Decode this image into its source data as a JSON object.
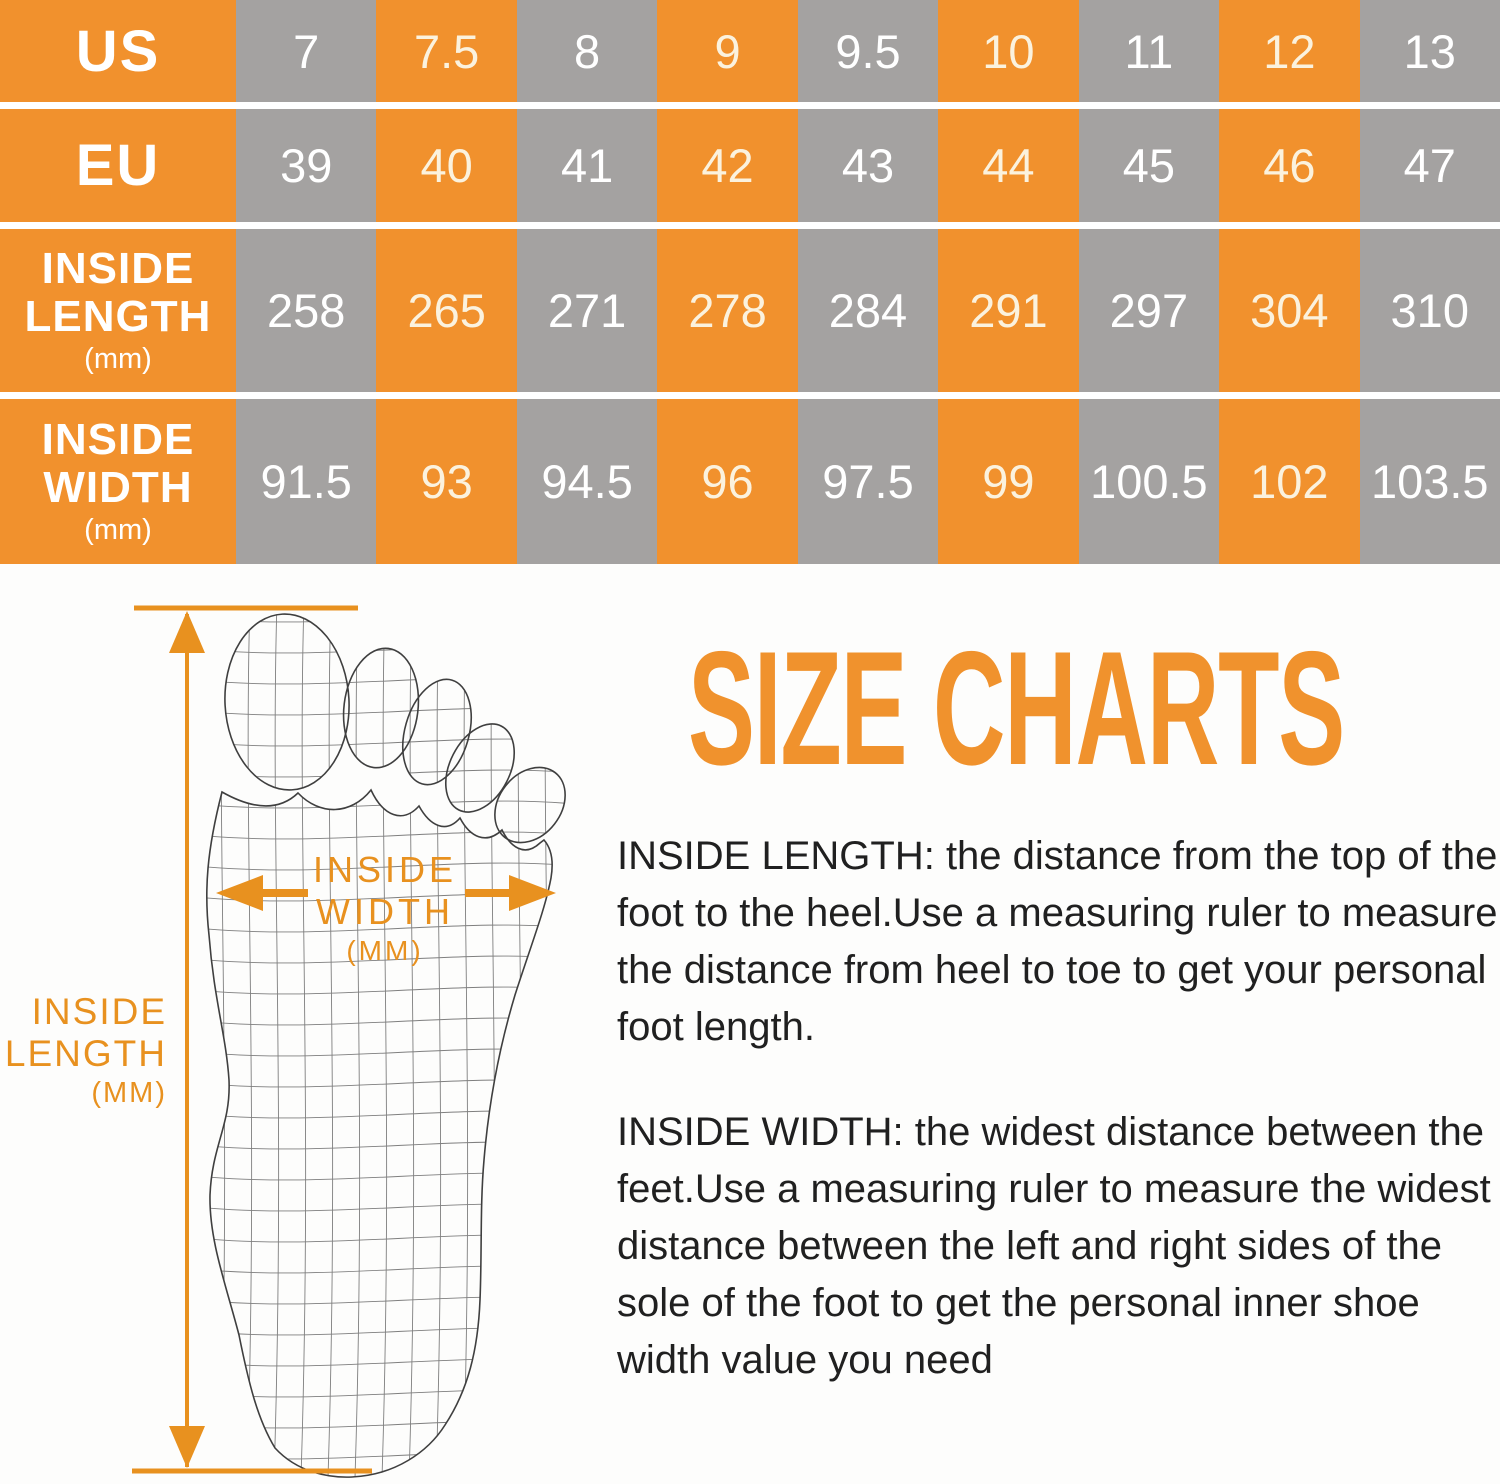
{
  "chart_data": {
    "type": "table",
    "title": "SIZE CHARTS",
    "rows": [
      {
        "label": "US",
        "unit": "",
        "values": [
          "7",
          "7.5",
          "8",
          "9",
          "9.5",
          "10",
          "11",
          "12",
          "13"
        ]
      },
      {
        "label": "EU",
        "unit": "",
        "values": [
          "39",
          "40",
          "41",
          "42",
          "43",
          "44",
          "45",
          "46",
          "47"
        ]
      },
      {
        "label": "INSIDE LENGTH",
        "unit": "(mm)",
        "values": [
          "258",
          "265",
          "271",
          "278",
          "284",
          "291",
          "297",
          "304",
          "310"
        ]
      },
      {
        "label": "INSIDE WIDTH",
        "unit": "(mm)",
        "values": [
          "91.5",
          "93",
          "94.5",
          "96",
          "97.5",
          "99",
          "100.5",
          "102",
          "103.5"
        ]
      }
    ]
  },
  "title": "SIZE CHARTS",
  "diagram": {
    "width_label": {
      "line1": "INSIDE",
      "line2": "WIDTH",
      "line3": "(MM)"
    },
    "length_label": {
      "line1": "INSIDE",
      "line2": "LENGTH",
      "line3": "(MM)"
    }
  },
  "descriptions": {
    "inside_length": "INSIDE LENGTH: the distance from the top of the foot to the heel.Use a measuring ruler to measure the distance from heel to toe to get your personal foot length.",
    "inside_width": "INSIDE WIDTH: the widest distance between the feet.Use a measuring ruler to measure the widest distance between the left and right sides of the sole of the foot to get the personal inner shoe width value you need"
  },
  "colors": {
    "table_orange": "#F1912D",
    "table_gray": "#A4A2A1",
    "annotation_orange": "#E8911F",
    "title_orange": "#F0922D"
  }
}
